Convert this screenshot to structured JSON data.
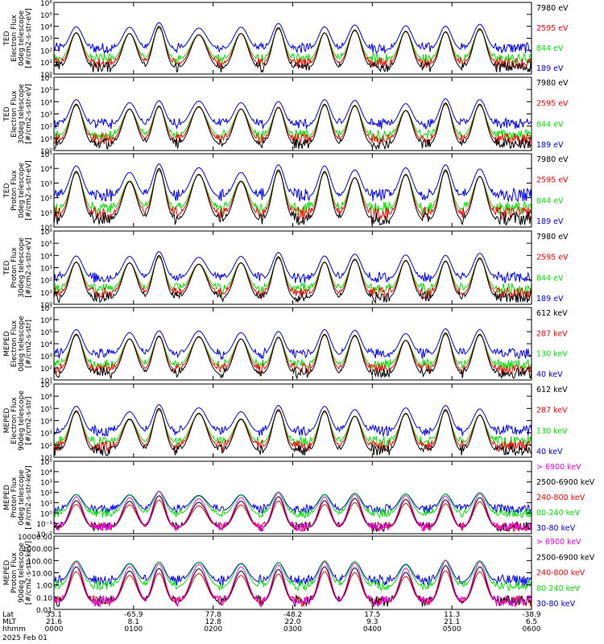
{
  "chart_data": {
    "type": "multi-panel line/step time series",
    "x_axis": {
      "time_range": [
        "0000",
        "0600"
      ],
      "date": "2025 Feb 01",
      "rows": [
        {
          "label": "Lat",
          "values": [
            "33.1",
            "-65.9",
            "77.8",
            "-48.2",
            "17.5",
            "11.3",
            "-38.9"
          ]
        },
        {
          "label": "MLT",
          "values": [
            "21.6",
            "8.1",
            "12.8",
            "22.0",
            "9.3",
            "21.1",
            "6.5"
          ]
        },
        {
          "label": "hhmm",
          "values": [
            "0000",
            "0100",
            "0200",
            "0300",
            "0400",
            "0500",
            "0600"
          ]
        }
      ]
    },
    "panels": [
      {
        "ylabel_lines": [
          "TED",
          "Electron Flux",
          "0deg telescope",
          "[#/cm2-s-str-eV]"
        ],
        "yscale": "log",
        "ylim": [
          1,
          1000000
        ],
        "tick_labels": [
          "10⁰",
          "10¹",
          "10²",
          "10³",
          "10⁴",
          "10⁵",
          "10⁶"
        ],
        "legend": [
          {
            "label": "7980 eV",
            "color": "#000000"
          },
          {
            "label": "2595 eV",
            "color": "#ff0000"
          },
          {
            "label": "844 eV",
            "color": "#00e600"
          },
          {
            "label": "189 eV",
            "color": "#0000ff"
          }
        ]
      },
      {
        "ylabel_lines": [
          "TED",
          "Electron Flux",
          "30deg telescope",
          "[#/cm2-s-str-eV]"
        ],
        "yscale": "log",
        "ylim": [
          1,
          1000000
        ],
        "tick_labels": [
          "10⁰",
          "10¹",
          "10²",
          "10³",
          "10⁴",
          "10⁵",
          "10⁶"
        ],
        "legend": [
          {
            "label": "7980 eV",
            "color": "#000000"
          },
          {
            "label": "2595 eV",
            "color": "#ff0000"
          },
          {
            "label": "844 eV",
            "color": "#00e600"
          },
          {
            "label": "189 eV",
            "color": "#0000ff"
          }
        ]
      },
      {
        "ylabel_lines": [
          "TED",
          "Proton Flux",
          "0deg telescope",
          "[#/cm2-s-str-eV]"
        ],
        "yscale": "log",
        "ylim": [
          1,
          100000
        ],
        "tick_labels": [
          "10⁰",
          "10¹",
          "10²",
          "10³",
          "10⁴",
          "10⁵"
        ],
        "legend": [
          {
            "label": "7980 eV",
            "color": "#000000"
          },
          {
            "label": "2595 eV",
            "color": "#ff0000"
          },
          {
            "label": "844 eV",
            "color": "#00e600"
          },
          {
            "label": "189 eV",
            "color": "#0000ff"
          }
        ]
      },
      {
        "ylabel_lines": [
          "TED",
          "Proton Flux",
          "30deg telescope",
          "[#/cm2-s-str-eV]"
        ],
        "yscale": "log",
        "ylim": [
          1,
          1000000
        ],
        "tick_labels": [
          "10⁰",
          "10¹",
          "10²",
          "10³",
          "10⁴",
          "10⁵",
          "10⁶"
        ],
        "legend": [
          {
            "label": "7980 eV",
            "color": "#000000"
          },
          {
            "label": "2595 eV",
            "color": "#ff0000"
          },
          {
            "label": "844 eV",
            "color": "#00e600"
          },
          {
            "label": "189 eV",
            "color": "#0000ff"
          }
        ]
      },
      {
        "ylabel_lines": [
          "MEPED",
          "Electron Flux",
          "0deg telescope",
          "[#/cm2-s-str]"
        ],
        "yscale": "log",
        "ylim": [
          10,
          10000000
        ],
        "tick_labels": [
          "10¹",
          "10²",
          "10³",
          "10⁴",
          "10⁵",
          "10⁶",
          "10⁷"
        ],
        "legend": [
          {
            "label": "612 keV",
            "color": "#000000"
          },
          {
            "label": "287 keV",
            "color": "#ff0000"
          },
          {
            "label": "130 keV",
            "color": "#00e600"
          },
          {
            "label": "40 keV",
            "color": "#0000ff"
          }
        ]
      },
      {
        "ylabel_lines": [
          "MEPED",
          "Electron Flux",
          "90deg telescope",
          "[#/cm2-s-str]"
        ],
        "yscale": "log",
        "ylim": [
          10,
          10000000
        ],
        "tick_labels": [
          "10¹",
          "10²",
          "10³",
          "10⁴",
          "10⁵",
          "10⁶",
          "10⁷"
        ],
        "legend": [
          {
            "label": "612 keV",
            "color": "#000000"
          },
          {
            "label": "287 keV",
            "color": "#ff0000"
          },
          {
            "label": "130 keV",
            "color": "#00e600"
          },
          {
            "label": "40 keV",
            "color": "#0000ff"
          }
        ]
      },
      {
        "ylabel_lines": [
          "MEPED",
          "Proton Flux",
          "0deg telescope",
          "[#/cm2-s-str-keV]"
        ],
        "yscale": "log",
        "ylim": [
          0.01,
          100000
        ],
        "tick_labels": [
          "10⁻²",
          "10⁻¹",
          "10⁰",
          "10¹",
          "10²",
          "10³",
          "10⁴",
          "10⁵"
        ],
        "legend": [
          {
            "label": "> 6900 keV",
            "color": "#ff00ff"
          },
          {
            "label": "2500-6900 keV",
            "color": "#000000"
          },
          {
            "label": "240-800 keV",
            "color": "#ff0000"
          },
          {
            "label": "80-240 keV",
            "color": "#00e600"
          },
          {
            "label": "30-80 keV",
            "color": "#0000ff"
          }
        ]
      },
      {
        "ylabel_lines": [
          "MEPED",
          "Proton Flux",
          "90deg telescope",
          "[#/cm2-s-str-keV]"
        ],
        "yscale": "log",
        "ylim": [
          0.01,
          10000
        ],
        "tick_labels": [
          "0.01",
          "0.10",
          "1.00",
          "10.00",
          "100.00",
          "1000.00",
          "10000.00"
        ],
        "legend": [
          {
            "label": "> 6900 keV",
            "color": "#ff00ff"
          },
          {
            "label": "2500-6900 keV",
            "color": "#000000"
          },
          {
            "label": "240-800 keV",
            "color": "#ff0000"
          },
          {
            "label": "80-240 keV",
            "color": "#00e600"
          },
          {
            "label": "30-80 keV",
            "color": "#0000ff"
          }
        ]
      }
    ],
    "passes_hours": [
      {
        "center": 0.28,
        "width": 0.13,
        "peak_decades": 3.4
      },
      {
        "center": 0.95,
        "width": 0.14,
        "peak_decades": 3.0
      },
      {
        "center": 1.32,
        "width": 0.12,
        "peak_decades": 3.6
      },
      {
        "center": 1.82,
        "width": 0.16,
        "peak_decades": 3.2
      },
      {
        "center": 2.35,
        "width": 0.14,
        "peak_decades": 3.0
      },
      {
        "center": 2.82,
        "width": 0.12,
        "peak_decades": 3.5
      },
      {
        "center": 3.4,
        "width": 0.12,
        "peak_decades": 3.4
      },
      {
        "center": 3.78,
        "width": 0.13,
        "peak_decades": 3.3
      },
      {
        "center": 4.42,
        "width": 0.13,
        "peak_decades": 3.2
      },
      {
        "center": 4.92,
        "width": 0.12,
        "peak_decades": 3.5
      },
      {
        "center": 5.35,
        "width": 0.13,
        "peak_decades": 3.4
      }
    ]
  }
}
